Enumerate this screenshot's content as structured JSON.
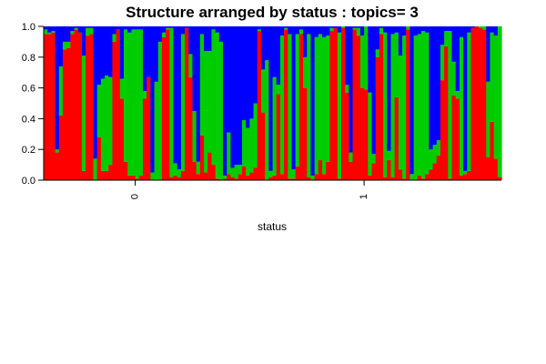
{
  "chart_data": {
    "type": "bar",
    "subtype": "stacked-100-percent",
    "title": "Structure arranged by status : topics= 3",
    "xlabel": "status",
    "ylabel": "",
    "ylim": [
      0,
      1
    ],
    "yticks": [
      "0.0",
      "0.2",
      "0.4",
      "0.6",
      "0.8",
      "1.0"
    ],
    "group_labels": [
      "0",
      "1"
    ],
    "group_sizes": [
      48,
      72
    ],
    "series": [
      {
        "name": "",
        "color": "#ff0000",
        "values": [
          0.95,
          0.95,
          0.96,
          0.18,
          0.42,
          0.85,
          0.86,
          0.95,
          0.98,
          0.96,
          0.06,
          0.94,
          0.95,
          0.0,
          0.28,
          0.06,
          0.06,
          0.1,
          0.9,
          0.98,
          0.53,
          0.12,
          0.03,
          0.03,
          0.01,
          0.03,
          0.53,
          0.67,
          0.0,
          0.0,
          0.0,
          0.93,
          0.98,
          0.02,
          0.03,
          0.02,
          0.06,
          0.99,
          0.67,
          0.12,
          0.04,
          0.29,
          0.05,
          0.18,
          0.1,
          0.01,
          0.0,
          0.01,
          0.04,
          0.02,
          0.01,
          0.04,
          0.09,
          0.03,
          0.05,
          0.08,
          0.97,
          0.44,
          0.0,
          0.02,
          0.03,
          0.56,
          0.04,
          0.98,
          0.01,
          0.01,
          0.09,
          0.95,
          0.6,
          0.02,
          0.0,
          0.04,
          0.13,
          0.04,
          0.12,
          0.97,
          0.99,
          0.01,
          0.99,
          0.57,
          0.12,
          0.98,
          0.94,
          0.6,
          0.59,
          0.03,
          0.11,
          0.8,
          0.95,
          0.02,
          0.13,
          0.02,
          0.54,
          0.07,
          0.01,
          0.98,
          0.0,
          0.0,
          0.03,
          0.01,
          0.04,
          0.07,
          0.11,
          0.16,
          0.65,
          0.87,
          0.01,
          0.55,
          0.53,
          0.03,
          0.04,
          0.06,
          0.99,
          1.0,
          0.99,
          0.98,
          0.15,
          0.38,
          0.14,
          0.02
        ]
      },
      {
        "name": "",
        "color": "#00cd00",
        "values": [
          0.03,
          0.01,
          0.01,
          0.02,
          0.32,
          0.05,
          0.04,
          0.02,
          0.01,
          0.0,
          0.75,
          0.05,
          0.04,
          0.14,
          0.34,
          0.6,
          0.62,
          0.57,
          0.05,
          0.0,
          0.13,
          0.86,
          0.93,
          0.95,
          0.97,
          0.95,
          0.05,
          0.0,
          0.05,
          0.64,
          0.9,
          0.03,
          0.01,
          0.97,
          0.08,
          0.05,
          0.89,
          0.0,
          0.15,
          0.33,
          0.08,
          0.66,
          0.79,
          0.66,
          0.88,
          0.95,
          0.9,
          0.02,
          0.27,
          0.06,
          0.09,
          0.06,
          0.3,
          0.31,
          0.35,
          0.42,
          0.01,
          0.28,
          0.78,
          0.04,
          0.64,
          0.06,
          0.9,
          0.01,
          0.94,
          0.06,
          0.86,
          0.03,
          0.2,
          0.93,
          0.03,
          0.89,
          0.82,
          0.89,
          0.82,
          0.02,
          0.0,
          0.95,
          0.01,
          0.05,
          0.06,
          0.01,
          0.05,
          0.34,
          0.41,
          0.54,
          0.06,
          0.05,
          0.04,
          0.94,
          0.06,
          0.93,
          0.42,
          0.74,
          0.93,
          0.02,
          0.04,
          0.94,
          0.92,
          0.96,
          0.92,
          0.13,
          0.12,
          0.1,
          0.23,
          0.1,
          0.96,
          0.22,
          0.05,
          0.9,
          0.02,
          0.9,
          0.0,
          0.0,
          0.01,
          0.02,
          0.49,
          0.58,
          0.8,
          0.98
        ]
      },
      {
        "name": "",
        "color": "#0000ff",
        "values": [
          0.02,
          0.04,
          0.03,
          0.8,
          0.26,
          0.1,
          0.1,
          0.03,
          0.01,
          0.04,
          0.19,
          0.01,
          0.01,
          0.86,
          0.38,
          0.34,
          0.32,
          0.33,
          0.05,
          0.02,
          0.34,
          0.02,
          0.04,
          0.02,
          0.02,
          0.02,
          0.42,
          0.33,
          0.95,
          0.36,
          0.1,
          0.04,
          0.01,
          0.01,
          0.89,
          0.93,
          0.05,
          0.01,
          0.18,
          0.55,
          0.88,
          0.05,
          0.16,
          0.16,
          0.02,
          0.04,
          0.1,
          0.97,
          0.69,
          0.92,
          0.9,
          0.9,
          0.61,
          0.66,
          0.6,
          0.5,
          0.02,
          0.28,
          0.22,
          0.94,
          0.33,
          0.38,
          0.06,
          0.01,
          0.05,
          0.93,
          0.05,
          0.02,
          0.2,
          0.05,
          0.97,
          0.07,
          0.05,
          0.07,
          0.06,
          0.01,
          0.01,
          0.04,
          0.0,
          0.38,
          0.82,
          0.01,
          0.01,
          0.06,
          0.0,
          0.43,
          0.83,
          0.15,
          0.01,
          0.04,
          0.81,
          0.05,
          0.04,
          0.19,
          0.06,
          0.0,
          0.96,
          0.06,
          0.05,
          0.03,
          0.04,
          0.8,
          0.77,
          0.74,
          0.12,
          0.03,
          0.03,
          0.23,
          0.42,
          0.07,
          0.94,
          0.04,
          0.01,
          0.0,
          0.0,
          0.0,
          0.36,
          0.04,
          0.06,
          0.0
        ]
      }
    ]
  }
}
